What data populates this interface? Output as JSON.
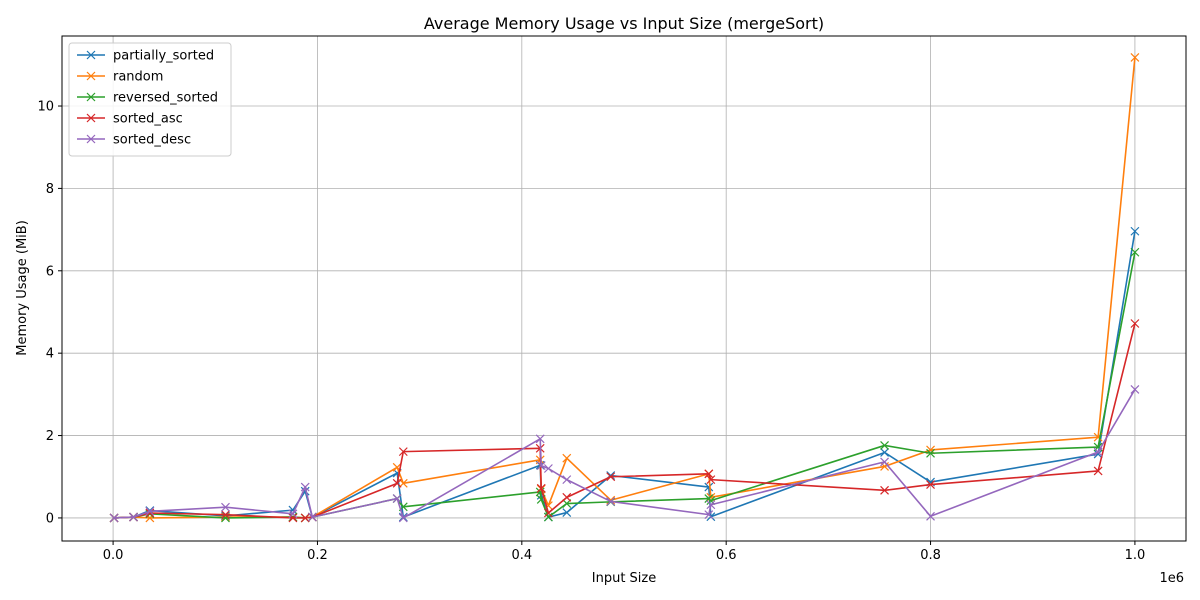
{
  "chart_data": {
    "type": "line",
    "title": "Average Memory Usage vs Input Size (mergeSort)",
    "xlabel": "Input Size",
    "ylabel": "Memory Usage (MiB)",
    "x_offset_label": "1e6",
    "xlim": [
      -50000,
      1050000
    ],
    "ylim": [
      -0.56,
      11.7
    ],
    "x_ticks": [
      0,
      200000,
      400000,
      600000,
      800000,
      1000000
    ],
    "x_tick_labels": [
      "0.0",
      "0.2",
      "0.4",
      "0.6",
      "0.8",
      "1.0"
    ],
    "y_ticks": [
      0,
      2,
      4,
      6,
      8,
      10
    ],
    "y_tick_labels": [
      "0",
      "2",
      "4",
      "6",
      "8",
      "10"
    ],
    "grid": true,
    "legend_position": "top-left",
    "marker": "x",
    "series": [
      {
        "name": "partially_sorted",
        "color": "#1f77b4",
        "x": [
          1000,
          20000,
          36000,
          110000,
          176000,
          188000,
          195000,
          278000,
          284000,
          418000,
          419000,
          426000,
          444000,
          487000,
          583000,
          585000,
          755000,
          800000,
          964000,
          1000000
        ],
        "y": [
          0,
          0.02,
          0.18,
          0.05,
          0.19,
          0.65,
          0.02,
          1.09,
          0.02,
          1.28,
          0.55,
          0.02,
          0.13,
          1.03,
          0.75,
          0.03,
          1.59,
          0.87,
          1.55,
          6.96
        ]
      },
      {
        "name": "random",
        "color": "#ff7f0e",
        "x": [
          1000,
          20000,
          36000,
          110000,
          176000,
          188000,
          195000,
          278000,
          284000,
          418000,
          419000,
          426000,
          444000,
          487000,
          583000,
          585000,
          755000,
          800000,
          964000,
          1000000
        ],
        "y": [
          0,
          0.02,
          0.0,
          0.02,
          0.02,
          0.0,
          0.02,
          1.23,
          0.84,
          1.41,
          0.7,
          0.3,
          1.45,
          0.43,
          1.07,
          0.5,
          1.25,
          1.65,
          1.96,
          11.18
        ]
      },
      {
        "name": "reversed_sorted",
        "color": "#2ca02c",
        "x": [
          1000,
          20000,
          36000,
          110000,
          176000,
          188000,
          195000,
          278000,
          284000,
          418000,
          419000,
          426000,
          444000,
          487000,
          583000,
          585000,
          755000,
          800000,
          964000,
          1000000
        ],
        "y": [
          0,
          0.02,
          0.1,
          0.0,
          0.02,
          0.0,
          0.02,
          0.47,
          0.27,
          0.63,
          0.45,
          0.02,
          0.35,
          0.39,
          0.47,
          0.42,
          1.76,
          1.57,
          1.72,
          6.45
        ]
      },
      {
        "name": "sorted_asc",
        "color": "#d62728",
        "x": [
          1000,
          20000,
          36000,
          110000,
          176000,
          188000,
          195000,
          278000,
          284000,
          418000,
          419000,
          426000,
          444000,
          487000,
          583000,
          585000,
          755000,
          800000,
          964000,
          1000000
        ],
        "y": [
          0,
          0.02,
          0.12,
          0.08,
          0.0,
          0.0,
          0.02,
          0.84,
          1.61,
          1.69,
          0.72,
          0.12,
          0.5,
          1.0,
          1.07,
          0.93,
          0.67,
          0.81,
          1.14,
          4.72
        ]
      },
      {
        "name": "sorted_desc",
        "color": "#9467bd",
        "x": [
          1000,
          20000,
          36000,
          110000,
          176000,
          188000,
          195000,
          278000,
          284000,
          418000,
          419000,
          426000,
          444000,
          487000,
          583000,
          585000,
          755000,
          800000,
          964000,
          1000000
        ],
        "y": [
          0,
          0.02,
          0.16,
          0.26,
          0.1,
          0.75,
          0.02,
          0.47,
          0.0,
          1.92,
          1.27,
          1.2,
          0.93,
          0.4,
          0.08,
          0.32,
          1.36,
          0.04,
          1.6,
          3.12
        ]
      }
    ]
  }
}
